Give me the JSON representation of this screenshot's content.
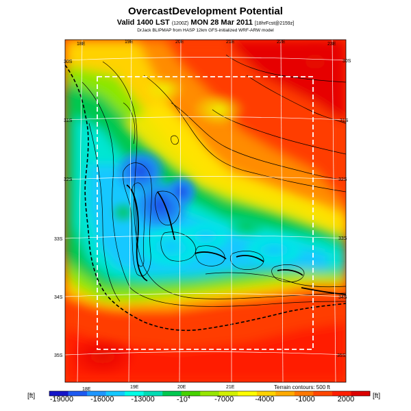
{
  "header": {
    "title": "OvercastDevelopment Potential",
    "valid_prefix": "Valid 1400 LST",
    "valid_utc": "(1200Z)",
    "valid_day": "MON 28 Mar 2011",
    "forecast_tag": "[18hrFcst@2159z]",
    "credit": "DrJack BLIPMAP from HASP 12km GFS-initialized WRF-ARW model"
  },
  "map": {
    "lon_top": [
      "18E",
      "19E",
      "20E",
      "21E",
      "22E",
      "23E"
    ],
    "lon_bottom": [
      "18E",
      "19E",
      "20E",
      "21E"
    ],
    "lat_left": [
      "30S",
      "31S",
      "32S",
      "33S",
      "34S",
      "35S"
    ],
    "lat_right": [
      "30S",
      "31S",
      "32S",
      "33S",
      "34S",
      "35S"
    ],
    "terrain_note": "Terrain contours: 500 ft"
  },
  "colorbar": {
    "unit_left": "[ft]",
    "unit_right": "[ft]",
    "ticks": [
      "-19000",
      "-16000",
      "-13000",
      "-10^4",
      "-7000",
      "-4000",
      "-1000",
      "2000"
    ],
    "colors": [
      "#1414c8",
      "#1e5af0",
      "#1e96ff",
      "#14c8ff",
      "#00ffe6",
      "#00dcb4",
      "#00c850",
      "#46d200",
      "#96e600",
      "#d2f000",
      "#ffff00",
      "#ffd200",
      "#ffaa00",
      "#ff7800",
      "#ff4600",
      "#ff1e00",
      "#dc0000"
    ]
  }
}
